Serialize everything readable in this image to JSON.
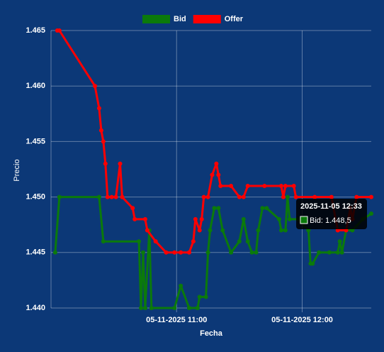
{
  "chart_data": {
    "type": "line",
    "x_label": "Fecha",
    "y_label": "Precio",
    "xlim": [
      "2025-11-05 10:00",
      "2025-11-05 12:33"
    ],
    "xticks": [
      {
        "value": "2025-11-05 11:00",
        "label": "05-11-2025 11:00"
      },
      {
        "value": "2025-11-05 12:00",
        "label": "05-11-2025 12:00"
      }
    ],
    "ylim": [
      1.44,
      1.465
    ],
    "yticks": [
      {
        "value": 1.44,
        "label": "1.440"
      },
      1.445,
      {
        "value": 1.45,
        "label": "1.450"
      },
      1.455,
      {
        "value": 1.46,
        "label": "1.460"
      },
      1.465
    ],
    "grid": true,
    "series": [
      {
        "name": "Bid",
        "color": "#0b7a0b",
        "x": [
          "2025-11-05 10:02",
          "2025-11-05 10:04",
          "2025-11-05 10:23",
          "2025-11-05 10:25",
          "2025-11-05 10:42",
          "2025-11-05 10:43",
          "2025-11-05 10:44",
          "2025-11-05 10:45",
          "2025-11-05 10:47",
          "2025-11-05 10:48",
          "2025-11-05 10:59",
          "2025-11-05 11:02",
          "2025-11-05 11:06",
          "2025-11-05 11:10",
          "2025-11-05 11:11",
          "2025-11-05 11:14",
          "2025-11-05 11:15",
          "2025-11-05 11:16",
          "2025-11-05 11:18",
          "2025-11-05 11:20",
          "2025-11-05 11:22",
          "2025-11-05 11:26",
          "2025-11-05 11:30",
          "2025-11-05 11:32",
          "2025-11-05 11:34",
          "2025-11-05 11:36",
          "2025-11-05 11:38",
          "2025-11-05 11:39",
          "2025-11-05 11:41",
          "2025-11-05 11:43",
          "2025-11-05 11:49",
          "2025-11-05 11:50",
          "2025-11-05 11:52",
          "2025-11-05 11:53",
          "2025-11-05 11:54",
          "2025-11-05 11:58",
          "2025-11-05 12:03",
          "2025-11-05 12:04",
          "2025-11-05 12:05",
          "2025-11-05 12:08",
          "2025-11-05 12:13",
          "2025-11-05 12:17",
          "2025-11-05 12:18",
          "2025-11-05 12:19",
          "2025-11-05 12:21",
          "2025-11-05 12:24",
          "2025-11-05 12:29",
          "2025-11-05 12:33"
        ],
        "values": [
          1.445,
          1.45,
          1.45,
          1.446,
          1.446,
          1.44,
          1.445,
          1.44,
          1.447,
          1.44,
          1.44,
          1.442,
          1.44,
          1.44,
          1.441,
          1.441,
          1.445,
          1.447,
          1.449,
          1.449,
          1.447,
          1.445,
          1.446,
          1.448,
          1.446,
          1.445,
          1.445,
          1.447,
          1.449,
          1.449,
          1.448,
          1.447,
          1.447,
          1.45,
          1.448,
          1.448,
          1.447,
          1.444,
          1.444,
          1.445,
          1.445,
          1.445,
          1.446,
          1.445,
          1.447,
          1.447,
          1.448,
          1.4485
        ]
      },
      {
        "name": "Offer",
        "color": "#ff0000",
        "x": [
          "2025-11-05 10:03",
          "2025-11-05 10:04",
          "2025-11-05 10:21",
          "2025-11-05 10:23",
          "2025-11-05 10:24",
          "2025-11-05 10:25",
          "2025-11-05 10:26",
          "2025-11-05 10:27",
          "2025-11-05 10:29",
          "2025-11-05 10:31",
          "2025-11-05 10:33",
          "2025-11-05 10:34",
          "2025-11-05 10:39",
          "2025-11-05 10:40",
          "2025-11-05 10:45",
          "2025-11-05 10:46",
          "2025-11-05 10:50",
          "2025-11-05 10:55",
          "2025-11-05 10:59",
          "2025-11-05 11:02",
          "2025-11-05 11:06",
          "2025-11-05 11:08",
          "2025-11-05 11:09",
          "2025-11-05 11:11",
          "2025-11-05 11:12",
          "2025-11-05 11:13",
          "2025-11-05 11:15",
          "2025-11-05 11:17",
          "2025-11-05 11:19",
          "2025-11-05 11:20",
          "2025-11-05 11:21",
          "2025-11-05 11:26",
          "2025-11-05 11:30",
          "2025-11-05 11:32",
          "2025-11-05 11:34",
          "2025-11-05 11:42",
          "2025-11-05 11:50",
          "2025-11-05 11:51",
          "2025-11-05 11:52",
          "2025-11-05 11:56",
          "2025-11-05 11:57",
          "2025-11-05 12:06",
          "2025-11-05 12:14",
          "2025-11-05 12:17",
          "2025-11-05 12:21",
          "2025-11-05 12:23",
          "2025-11-05 12:24",
          "2025-11-05 12:26",
          "2025-11-05 12:33"
        ],
        "values": [
          1.465,
          1.465,
          1.46,
          1.458,
          1.456,
          1.455,
          1.453,
          1.45,
          1.45,
          1.45,
          1.453,
          1.45,
          1.449,
          1.448,
          1.448,
          1.447,
          1.446,
          1.445,
          1.445,
          1.445,
          1.445,
          1.446,
          1.448,
          1.447,
          1.448,
          1.45,
          1.45,
          1.452,
          1.453,
          1.452,
          1.451,
          1.451,
          1.45,
          1.45,
          1.451,
          1.451,
          1.451,
          1.45,
          1.451,
          1.451,
          1.45,
          1.45,
          1.45,
          1.447,
          1.447,
          1.449,
          1.448,
          1.45,
          1.45
        ]
      }
    ],
    "tooltip": {
      "title": "2025-11-05 12:33",
      "label": "Bid: 1.448,5"
    }
  }
}
